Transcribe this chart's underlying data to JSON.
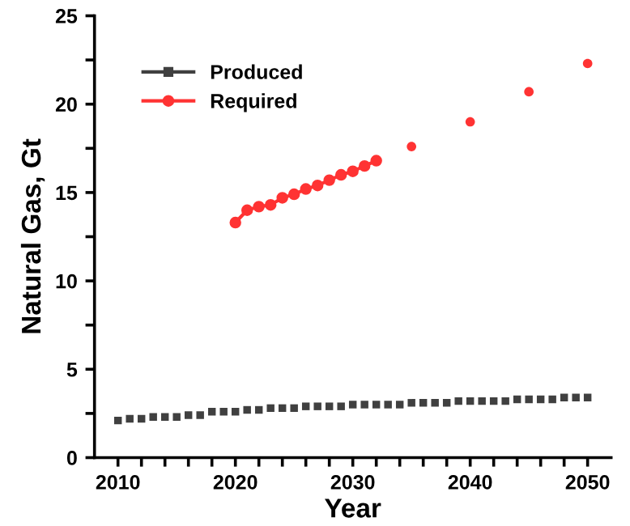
{
  "chart_data": {
    "type": "line",
    "xlabel": "Year",
    "ylabel": "Natural Gas, Gt",
    "xlim": [
      2008,
      2052
    ],
    "ylim": [
      0,
      25
    ],
    "xticks": [
      2010,
      {
        "value": 2012,
        "label": null
      },
      {
        "value": 2014,
        "label": null
      },
      {
        "value": 2016,
        "label": null
      },
      {
        "value": 2018,
        "label": null
      },
      2020,
      {
        "value": 2022,
        "label": null
      },
      {
        "value": 2024,
        "label": null
      },
      {
        "value": 2026,
        "label": null
      },
      {
        "value": 2028,
        "label": null
      },
      2030,
      {
        "value": 2032,
        "label": null
      },
      {
        "value": 2034,
        "label": null
      },
      {
        "value": 2036,
        "label": null
      },
      {
        "value": 2038,
        "label": null
      },
      2040,
      {
        "value": 2042,
        "label": null
      },
      {
        "value": 2044,
        "label": null
      },
      {
        "value": 2046,
        "label": null
      },
      {
        "value": 2048,
        "label": null
      },
      2050
    ],
    "yticks": [
      0,
      {
        "value": 2.5,
        "label": null
      },
      5,
      {
        "value": 7.5,
        "label": null
      },
      10,
      {
        "value": 12.5,
        "label": null
      },
      15,
      {
        "value": 17.5,
        "label": null
      },
      20,
      {
        "value": 22.5,
        "label": null
      },
      25
    ],
    "legend": "top left",
    "grid": false,
    "series": [
      {
        "name": "Produced",
        "color": "#404040",
        "marker": "square",
        "type": "scatter",
        "x": [
          2010,
          2011,
          2012,
          2013,
          2014,
          2015,
          2016,
          2017,
          2018,
          2019,
          2020,
          2021,
          2022,
          2023,
          2024,
          2025,
          2026,
          2027,
          2028,
          2029,
          2030,
          2031,
          2032,
          2033,
          2034,
          2035,
          2036,
          2037,
          2038,
          2039,
          2040,
          2041,
          2042,
          2043,
          2044,
          2045,
          2046,
          2047,
          2048,
          2049,
          2050
        ],
        "values": [
          2.1,
          2.2,
          2.2,
          2.3,
          2.3,
          2.3,
          2.4,
          2.4,
          2.6,
          2.6,
          2.6,
          2.7,
          2.7,
          2.8,
          2.8,
          2.8,
          2.9,
          2.9,
          2.9,
          2.9,
          3.0,
          3.0,
          3.0,
          3.0,
          3.0,
          3.1,
          3.1,
          3.1,
          3.1,
          3.2,
          3.2,
          3.2,
          3.2,
          3.2,
          3.3,
          3.3,
          3.3,
          3.3,
          3.4,
          3.4,
          3.4
        ]
      },
      {
        "name": "Required",
        "color": "#ff3333",
        "marker": "circle",
        "x": [
          2020,
          2021,
          2022,
          2023,
          2024,
          2025,
          2026,
          2027,
          2028,
          2029,
          2030,
          2031,
          2032
        ],
        "values": [
          13.3,
          14.0,
          14.2,
          14.3,
          14.7,
          14.9,
          15.2,
          15.4,
          15.7,
          16.0,
          16.2,
          16.5,
          16.8
        ]
      },
      {
        "color": "#ff3333",
        "marker": "circle",
        "type": "scatter",
        "x": [
          2035,
          2040,
          2045,
          2050
        ],
        "values": [
          17.6,
          19.0,
          20.7,
          22.3
        ]
      }
    ]
  }
}
